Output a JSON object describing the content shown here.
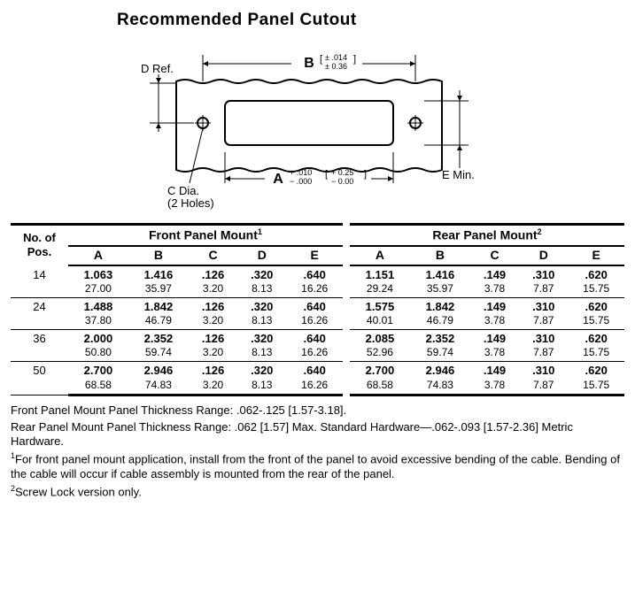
{
  "title": "Recommended Panel Cutout",
  "diagram": {
    "labels": {
      "B": "B",
      "B_tol": "[ ± .014 ]\n[ ± 0.36 ]",
      "D": "D Ref.",
      "A": "A",
      "A_tol": "+ .010  [ + 0.25 ]\n− .000  [ − 0.00 ]",
      "C": "C Dia.\n(2 Holes)",
      "E": "E Min."
    }
  },
  "table": {
    "header": {
      "pos": "No. of\nPos.",
      "front": "Front Panel Mount",
      "front_sup": "1",
      "rear": "Rear Panel Mount",
      "rear_sup": "2",
      "cols": [
        "A",
        "B",
        "C",
        "D",
        "E"
      ]
    },
    "rows": [
      {
        "pos": "14",
        "front_in": [
          "1.063",
          "1.416",
          ".126",
          ".320",
          ".640"
        ],
        "front_mm": [
          "27.00",
          "35.97",
          "3.20",
          "8.13",
          "16.26"
        ],
        "rear_in": [
          "1.151",
          "1.416",
          ".149",
          ".310",
          ".620"
        ],
        "rear_mm": [
          "29.24",
          "35.97",
          "3.78",
          "7.87",
          "15.75"
        ]
      },
      {
        "pos": "24",
        "front_in": [
          "1.488",
          "1.842",
          ".126",
          ".320",
          ".640"
        ],
        "front_mm": [
          "37.80",
          "46.79",
          "3.20",
          "8.13",
          "16.26"
        ],
        "rear_in": [
          "1.575",
          "1.842",
          ".149",
          ".310",
          ".620"
        ],
        "rear_mm": [
          "40.01",
          "46.79",
          "3.78",
          "7.87",
          "15.75"
        ]
      },
      {
        "pos": "36",
        "front_in": [
          "2.000",
          "2.352",
          ".126",
          ".320",
          ".640"
        ],
        "front_mm": [
          "50.80",
          "59.74",
          "3.20",
          "8.13",
          "16.26"
        ],
        "rear_in": [
          "2.085",
          "2.352",
          ".149",
          ".310",
          ".620"
        ],
        "rear_mm": [
          "52.96",
          "59.74",
          "3.78",
          "7.87",
          "15.75"
        ]
      },
      {
        "pos": "50",
        "front_in": [
          "2.700",
          "2.946",
          ".126",
          ".320",
          ".640"
        ],
        "front_mm": [
          "68.58",
          "74.83",
          "3.20",
          "8.13",
          "16.26"
        ],
        "rear_in": [
          "2.700",
          "2.946",
          ".149",
          ".310",
          ".620"
        ],
        "rear_mm": [
          "68.58",
          "74.83",
          "3.78",
          "7.87",
          "15.75"
        ]
      }
    ]
  },
  "notes": {
    "n1": "Front Panel Mount Panel Thickness Range: .062-.125 [1.57-3.18].",
    "n2": "Rear Panel Mount Panel Thickness Range: .062 [1.57] Max. Standard Hardware—.062-.093 [1.57-2.36] Metric Hardware.",
    "n3_sup": "1",
    "n3": "For front panel mount application, install from the front of the panel to avoid excessive bending of the cable. Bending of the cable will occur if cable assembly is mounted from the rear of the panel.",
    "n4_sup": "2",
    "n4": "Screw Lock version only."
  }
}
